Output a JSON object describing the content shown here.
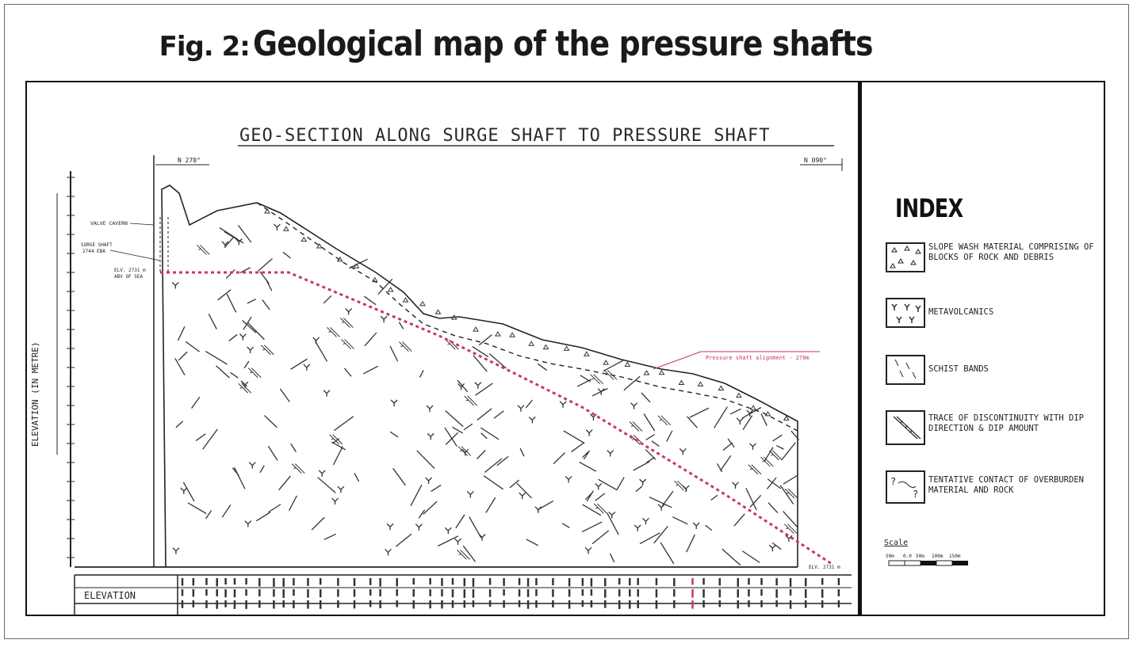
{
  "figure": {
    "number": "Fig. 2:",
    "title": "Geological map of the pressure shafts"
  },
  "section": {
    "title": "GEO-SECTION ALONG SURGE SHAFT TO PRESSURE SHAFT",
    "left_bearing": "N 270°",
    "right_bearing": "N 090°",
    "y_axis_label": "ELEVATION (IN METRE)",
    "bottom_label": "ELEVATION",
    "annotations": {
      "valve_cavern": "VALVE CAVERN",
      "surge_shaft": "SURGE SHAFT",
      "surge_shaft_2": "2744 EBA",
      "msl_1": "ELV. 2731 m",
      "msl_2": "ABV OF SEA",
      "alignment": "Pressure shaft alignment - 270m"
    },
    "colors": {
      "alignment": "#c8385a",
      "line": "#222222"
    }
  },
  "index": {
    "title": "INDEX",
    "items": [
      {
        "label": "SLOPE WASH MATERIAL COMPRISING OF BLOCKS OF ROCK AND DEBRIS",
        "icon": "slope-wash-icon"
      },
      {
        "label": "METAVOLCANICS",
        "icon": "metavolcanics-icon"
      },
      {
        "label": "SCHIST BANDS",
        "icon": "schist-icon"
      },
      {
        "label": "TRACE OF DISCONTINUITY WITH DIP DIRECTION & DIP AMOUNT",
        "icon": "discontinuity-icon"
      },
      {
        "label": "TENTATIVE CONTACT OF OVERBURDEN MATERIAL AND ROCK",
        "icon": "tentative-contact-icon"
      }
    ],
    "scale_label": "Scale"
  }
}
